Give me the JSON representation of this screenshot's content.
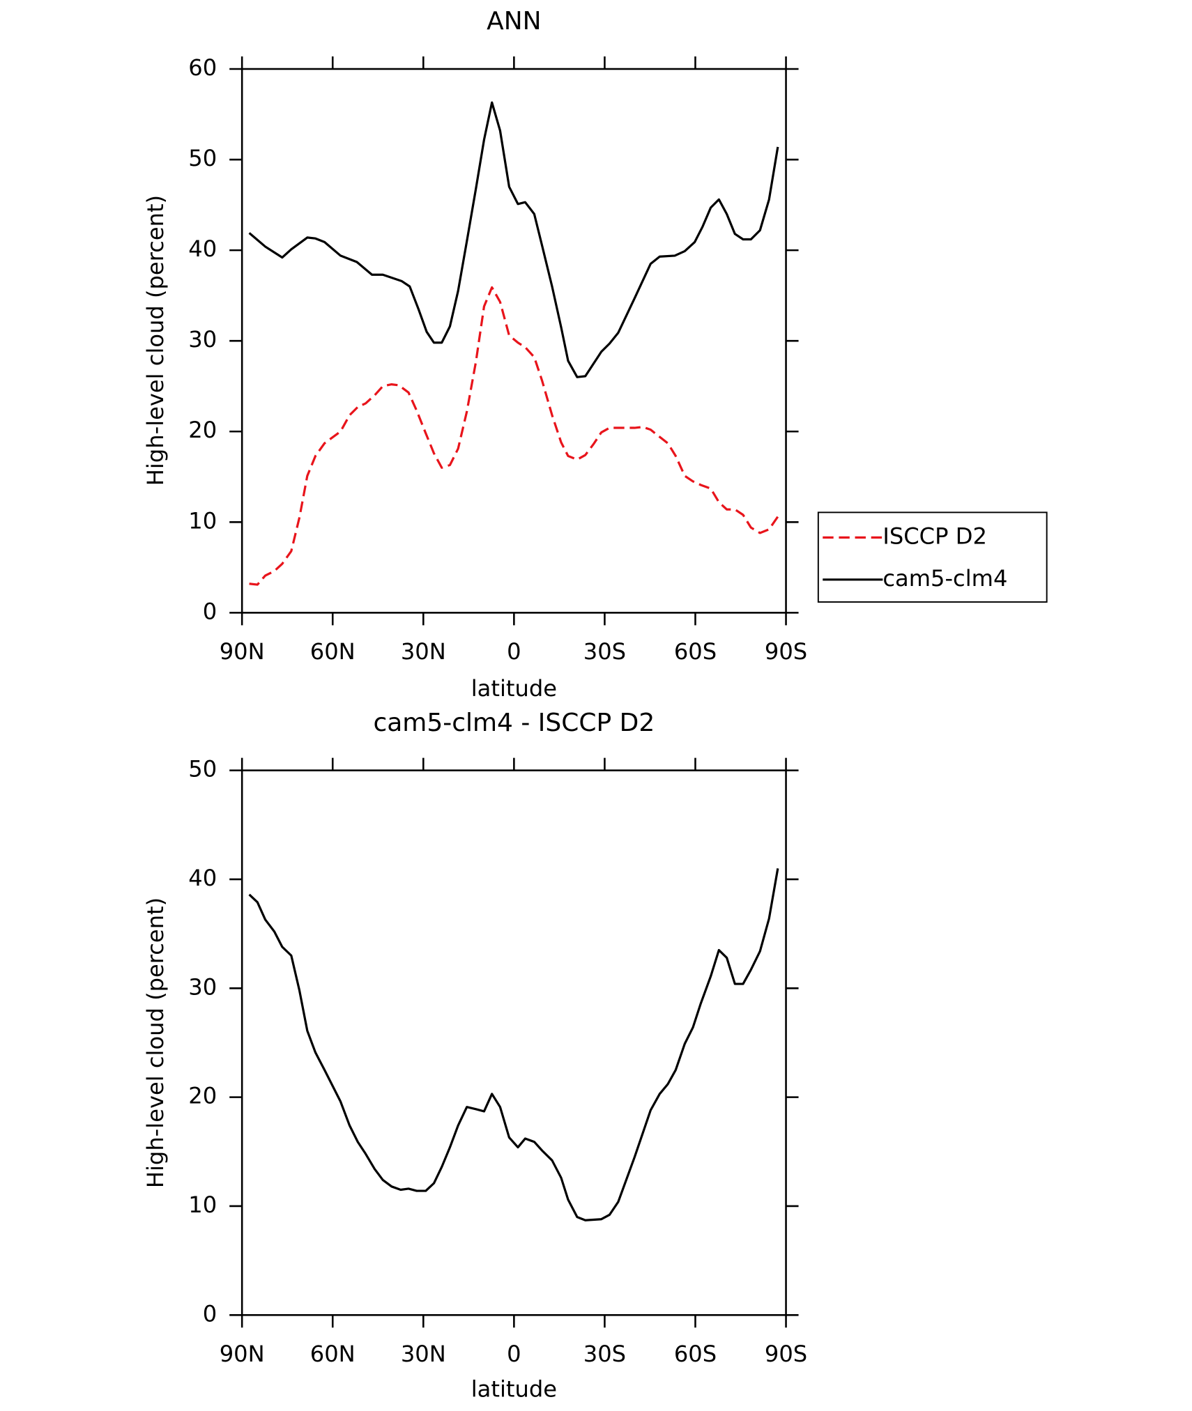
{
  "chart_data": [
    {
      "type": "line",
      "title": "ANN",
      "xlabel": "latitude",
      "ylabel": "High-level cloud (percent)",
      "xlim": [
        90,
        -90
      ],
      "xticks": [
        {
          "value": 90,
          "label": "90N"
        },
        {
          "value": 60,
          "label": "60N"
        },
        {
          "value": 30,
          "label": "30N"
        },
        0,
        {
          "value": -30,
          "label": "30S"
        },
        {
          "value": -60,
          "label": "60S"
        },
        {
          "value": -90,
          "label": "90S"
        }
      ],
      "ylim": [
        0,
        60
      ],
      "yticks": [
        0,
        10,
        20,
        30,
        40,
        50,
        60
      ],
      "legend": "right",
      "series": [
        {
          "name": "ISCCP D2",
          "color": "#e8141b",
          "dash": true,
          "x": [
            87.6,
            84.9,
            82.3,
            79.3,
            76.7,
            73.7,
            71.0,
            68.4,
            65.7,
            62.7,
            57.4,
            54.4,
            51.7,
            49.1,
            46.1,
            43.4,
            40.5,
            38.1,
            34.9,
            32.2,
            29.2,
            26.5,
            23.9,
            21.2,
            18.5,
            15.6,
            12.6,
            9.9,
            7.3,
            4.6,
            1.6,
            -1.3,
            -3.7,
            -6.7,
            -9.3,
            -12.6,
            -15.6,
            -17.9,
            -20.9,
            -23.6,
            -26.3,
            -28.9,
            -31.6,
            -34.5,
            -39.9,
            -42.6,
            -45.2,
            -48.2,
            -50.9,
            -53.5,
            -56.5,
            -59.2,
            -61.8,
            -65.1,
            -67.8,
            -70.4,
            -73.1,
            -75.8,
            -78.4,
            -81.4,
            -84.4,
            -87.3
          ],
          "values": [
            3.2,
            3.1,
            4.1,
            4.6,
            5.4,
            6.8,
            10.5,
            15.1,
            17.3,
            18.7,
            20.0,
            21.8,
            22.7,
            23.1,
            24.0,
            25.0,
            25.2,
            25.1,
            24.3,
            22.3,
            19.8,
            17.6,
            16.0,
            16.3,
            18.1,
            22.2,
            27.7,
            33.8,
            35.9,
            34.3,
            30.6,
            29.8,
            29.3,
            28.2,
            25.6,
            21.8,
            18.8,
            17.3,
            16.9,
            17.4,
            18.6,
            19.9,
            20.4,
            20.4,
            20.4,
            20.5,
            20.2,
            19.4,
            18.7,
            17.3,
            15.1,
            14.5,
            14.1,
            13.7,
            12.2,
            11.4,
            11.4,
            10.8,
            9.4,
            8.8,
            9.2,
            10.6
          ]
        },
        {
          "name": "cam5-clm4",
          "color": "#000000",
          "dash": false,
          "x": [
            87.6,
            82.3,
            76.7,
            73.7,
            68.4,
            65.7,
            62.7,
            57.4,
            52.0,
            47.0,
            43.4,
            37.2,
            34.5,
            31.6,
            28.9,
            26.5,
            23.9,
            21.2,
            18.5,
            15.6,
            12.6,
            9.9,
            7.3,
            4.6,
            1.6,
            -1.3,
            -3.7,
            -6.7,
            -9.3,
            -12.6,
            -15.6,
            -17.9,
            -20.9,
            -23.6,
            -28.9,
            -31.6,
            -34.5,
            -39.9,
            -45.2,
            -48.2,
            -53.2,
            -56.5,
            -59.8,
            -62.4,
            -65.1,
            -67.8,
            -70.4,
            -73.1,
            -75.8,
            -78.4,
            -81.4,
            -84.4,
            -87.3
          ],
          "values": [
            41.9,
            40.4,
            39.2,
            40.1,
            41.4,
            41.3,
            40.9,
            39.4,
            38.7,
            37.3,
            37.3,
            36.6,
            36.0,
            33.5,
            31.0,
            29.8,
            29.8,
            31.6,
            35.5,
            41.0,
            46.8,
            52.2,
            56.3,
            53.2,
            47.0,
            45.1,
            45.3,
            44.0,
            40.5,
            36.0,
            31.5,
            27.8,
            26.0,
            26.1,
            28.8,
            29.7,
            30.9,
            34.7,
            38.5,
            39.3,
            39.4,
            39.9,
            40.9,
            42.6,
            44.7,
            45.6,
            44.0,
            41.8,
            41.2,
            41.2,
            42.2,
            45.6,
            51.4
          ]
        }
      ]
    },
    {
      "type": "line",
      "title": "cam5-clm4 - ISCCP D2",
      "xlabel": "latitude",
      "ylabel": "High-level cloud (percent)",
      "xlim": [
        90,
        -90
      ],
      "xticks": [
        {
          "value": 90,
          "label": "90N"
        },
        {
          "value": 60,
          "label": "60N"
        },
        {
          "value": 30,
          "label": "30N"
        },
        0,
        {
          "value": -30,
          "label": "30S"
        },
        {
          "value": -60,
          "label": "60S"
        },
        {
          "value": -90,
          "label": "90S"
        }
      ],
      "ylim": [
        0,
        50
      ],
      "yticks": [
        0,
        10,
        20,
        30,
        40,
        50
      ],
      "series": [
        {
          "color": "#000000",
          "dash": false,
          "x": [
            87.6,
            84.9,
            82.3,
            79.3,
            76.7,
            73.7,
            71.0,
            68.4,
            65.7,
            62.7,
            57.4,
            54.4,
            51.7,
            49.1,
            46.1,
            43.4,
            40.5,
            37.5,
            34.9,
            32.2,
            29.2,
            26.5,
            23.9,
            21.2,
            18.5,
            15.6,
            12.6,
            9.9,
            7.3,
            4.6,
            1.6,
            -1.3,
            -3.7,
            -6.7,
            -9.3,
            -12.6,
            -15.6,
            -17.9,
            -20.9,
            -23.6,
            -28.9,
            -31.6,
            -34.5,
            -39.9,
            -45.2,
            -48.2,
            -50.9,
            -53.5,
            -56.5,
            -59.2,
            -61.8,
            -65.1,
            -67.8,
            -70.4,
            -73.1,
            -75.8,
            -78.4,
            -81.4,
            -84.4,
            -87.3
          ],
          "values": [
            38.6,
            37.9,
            36.3,
            35.2,
            33.8,
            33.0,
            29.8,
            26.1,
            24.1,
            22.5,
            19.6,
            17.4,
            15.9,
            14.8,
            13.4,
            12.4,
            11.8,
            11.5,
            11.6,
            11.4,
            11.4,
            12.1,
            13.6,
            15.4,
            17.4,
            19.1,
            18.9,
            18.7,
            20.3,
            19.1,
            16.3,
            15.4,
            16.2,
            15.9,
            15.1,
            14.2,
            12.6,
            10.6,
            9.0,
            8.7,
            8.8,
            9.2,
            10.4,
            14.5,
            18.8,
            20.3,
            21.2,
            22.5,
            24.9,
            26.4,
            28.6,
            31.1,
            33.5,
            32.8,
            30.4,
            30.4,
            31.7,
            33.4,
            36.4,
            41.0
          ]
        }
      ]
    }
  ]
}
